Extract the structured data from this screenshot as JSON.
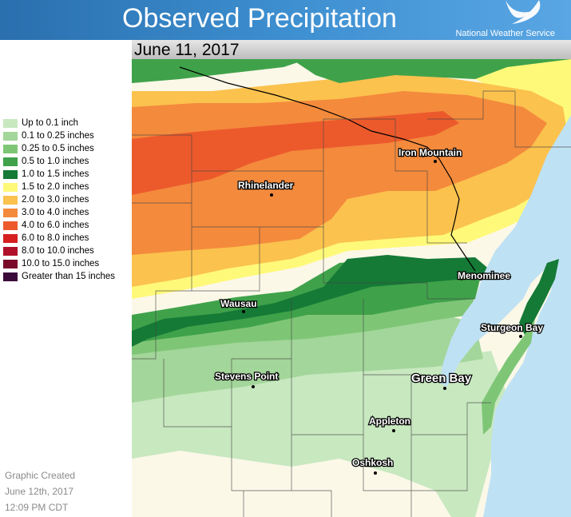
{
  "header": {
    "title": "Observed Precipitation",
    "agency": "National Weather Service"
  },
  "date": "June 11, 2017",
  "legend": {
    "items": [
      {
        "label": "Up to 0.1 inch",
        "color": "#c8e8c0"
      },
      {
        "label": "0.1 to 0.25 inches",
        "color": "#a3d69a"
      },
      {
        "label": "0.25 to 0.5 inches",
        "color": "#7ec676"
      },
      {
        "label": "0.5 to 1.0 inches",
        "color": "#3fa24a"
      },
      {
        "label": "1.0 to 1.5 inches",
        "color": "#157a36"
      },
      {
        "label": "1.5 to 2.0 inches",
        "color": "#fff97a"
      },
      {
        "label": "2.0 to 3.0 inches",
        "color": "#fbc24e"
      },
      {
        "label": "3.0 to 4.0 inches",
        "color": "#f48a3c"
      },
      {
        "label": "4.0 to 6.0 inches",
        "color": "#ec5a2c"
      },
      {
        "label": "6.0 to 8.0 inches",
        "color": "#d62020"
      },
      {
        "label": "8.0 to 10.0 inches",
        "color": "#b0102a"
      },
      {
        "label": "10.0 to 15.0 inches",
        "color": "#7a0a2a"
      },
      {
        "label": "Greater than 15 inches",
        "color": "#3a0a3a"
      }
    ]
  },
  "created": {
    "line1": "Graphic Created",
    "line2": "June 12th, 2017",
    "line3": "12:09 PM CDT"
  },
  "cities": {
    "iron_mountain": "Iron Mountain",
    "rhinelander": "Rhinelander",
    "menominee": "Menominee",
    "wausau": "Wausau",
    "sturgeon_bay": "Sturgeon Bay",
    "stevens_point": "Stevens Point",
    "green_bay": "Green Bay",
    "appleton": "Appleton",
    "oshkosh": "Oshkosh"
  },
  "colors": {
    "lake": "#bfe1f4",
    "no_precip": "#fbf8e8"
  }
}
